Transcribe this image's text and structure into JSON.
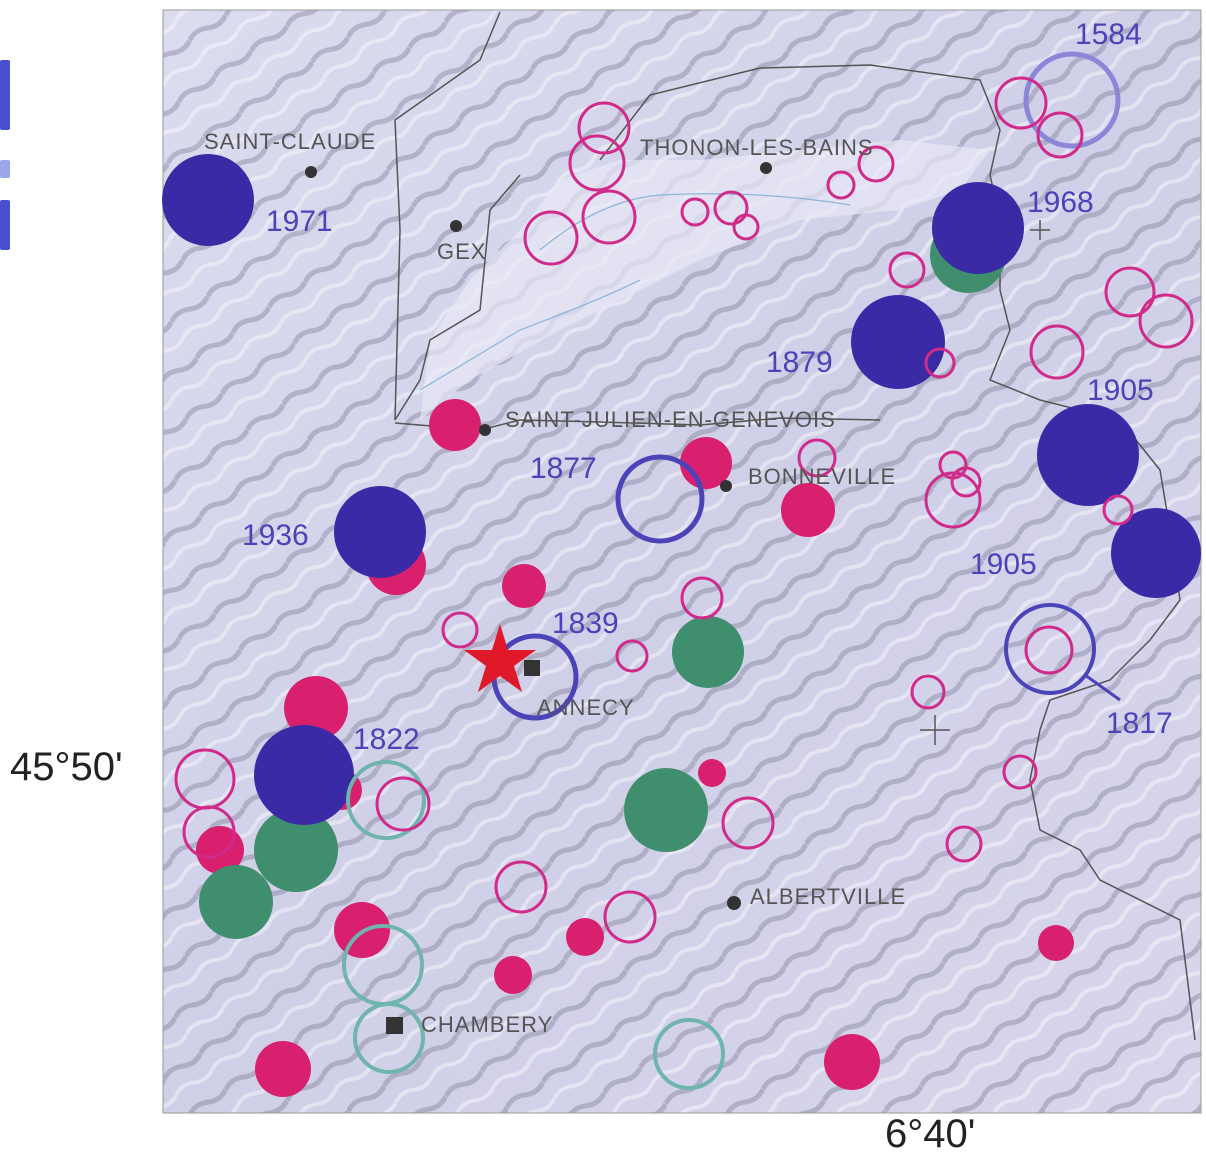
{
  "map": {
    "coord_labels": {
      "latitude": "45°50'",
      "longitude": "6°40'"
    },
    "cities": [
      {
        "name": "SAINT-CLAUDE",
        "symbol": "dot"
      },
      {
        "name": "GEX",
        "symbol": "dot"
      },
      {
        "name": "THONON-LES-BAINS",
        "symbol": "dot"
      },
      {
        "name": "SAINT-JULIEN-EN-GENEVOIS",
        "symbol": "dot"
      },
      {
        "name": "BONNEVILLE",
        "symbol": "dot"
      },
      {
        "name": "ANNECY",
        "symbol": "square"
      },
      {
        "name": "ALBERTVILLE",
        "symbol": "dot"
      },
      {
        "name": "CHAMBERY",
        "symbol": "square"
      }
    ],
    "year_labels": [
      "1584",
      "1971",
      "1968",
      "1879",
      "1905",
      "1877",
      "1936",
      "1905",
      "1839",
      "1817",
      "1822"
    ],
    "colors": {
      "dark_blue": "#3b2aa6",
      "magenta": "#d8206e",
      "green": "#3f8f6e",
      "ring_magenta": "#d02a8a",
      "ring_blue": "#4a44b8",
      "ring_teal": "#6fb4ad",
      "star": "#e0192a"
    }
  }
}
